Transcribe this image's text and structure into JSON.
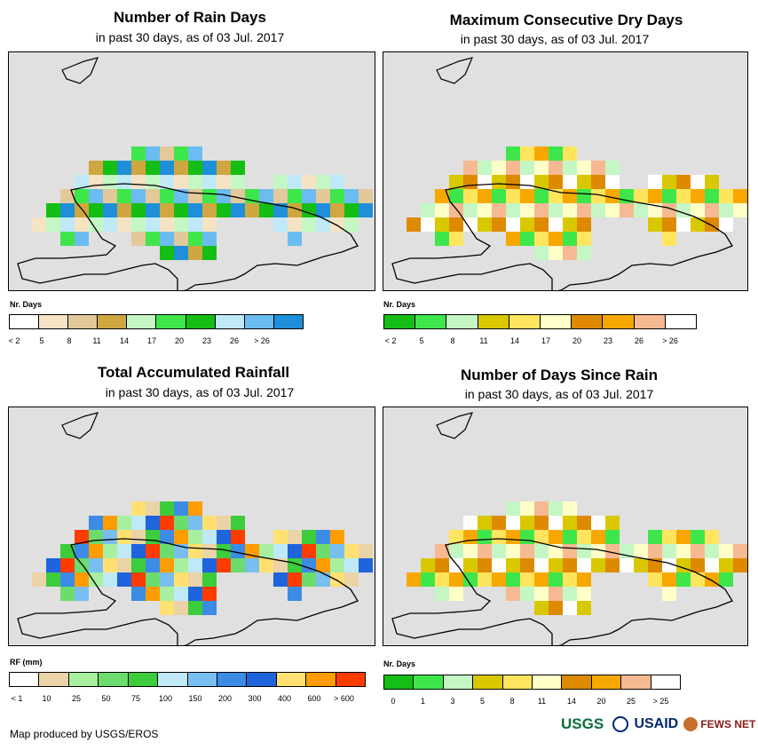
{
  "panels": [
    {
      "title": "Number of Rain Days",
      "subtitle": "in past 30 days, as of 03 Jul. 2017",
      "legend_title": "Nr. Days",
      "legend_labels": [
        "< 2",
        "5",
        "8",
        "11",
        "14",
        "17",
        "20",
        "23",
        "26",
        "> 26"
      ],
      "legend_colors": [
        "#ffffff",
        "#f6e3c4",
        "#e3c89a",
        "#cfa740",
        "#c4f7c4",
        "#3ee64c",
        "#14be14",
        "#bfe9f7",
        "#6bbcf0",
        "#1e8fd8"
      ]
    },
    {
      "title": "Maximum Consecutive Dry Days",
      "subtitle": "in past 30 days, as of 03 Jul. 2017",
      "legend_title": "Nr. Days",
      "legend_labels": [
        "< 2",
        "5",
        "8",
        "11",
        "14",
        "17",
        "20",
        "23",
        "26",
        "> 26"
      ],
      "legend_colors": [
        "#14be14",
        "#3ee64c",
        "#c4f7c4",
        "#d9c800",
        "#ffe45e",
        "#ffffc8",
        "#dd8a00",
        "#f7a800",
        "#f7b991",
        "#ffffff"
      ]
    },
    {
      "title": "Total Accumulated Rainfall",
      "subtitle": "in past 30 days, as of 03 Jul. 2017",
      "legend_title": "RF (mm)",
      "legend_labels": [
        "< 1",
        "10",
        "25",
        "50",
        "75",
        "100",
        "150",
        "200",
        "300",
        "400",
        "600",
        "> 600"
      ],
      "legend_colors": [
        "#ffffff",
        "#ebd3a8",
        "#a8f0a0",
        "#6cdc6c",
        "#3ccc3c",
        "#bfe9f7",
        "#78bef0",
        "#3c8ce6",
        "#1e64dc",
        "#ffe070",
        "#ff9c00",
        "#ff3c00"
      ]
    },
    {
      "title": "Number of Days Since Rain",
      "subtitle": "in past 30 days, as of 03 Jul. 2017",
      "legend_title": "Nr. Days",
      "legend_labels": [
        "0",
        "1",
        "3",
        "5",
        "8",
        "11",
        "14",
        "20",
        "25",
        "> 25"
      ],
      "legend_colors": [
        "#14be14",
        "#3ee64c",
        "#c4f7c4",
        "#d9c800",
        "#ffe45e",
        "#ffffc8",
        "#dd8a00",
        "#f7a800",
        "#f7b991",
        "#ffffff"
      ]
    }
  ],
  "footer": {
    "credit": "Map produced by USGS/EROS",
    "logos": [
      "USGS",
      "USAID",
      "FEWS NET"
    ]
  },
  "colors": {
    "background": "#e0e0e0",
    "coast": "#000000"
  }
}
